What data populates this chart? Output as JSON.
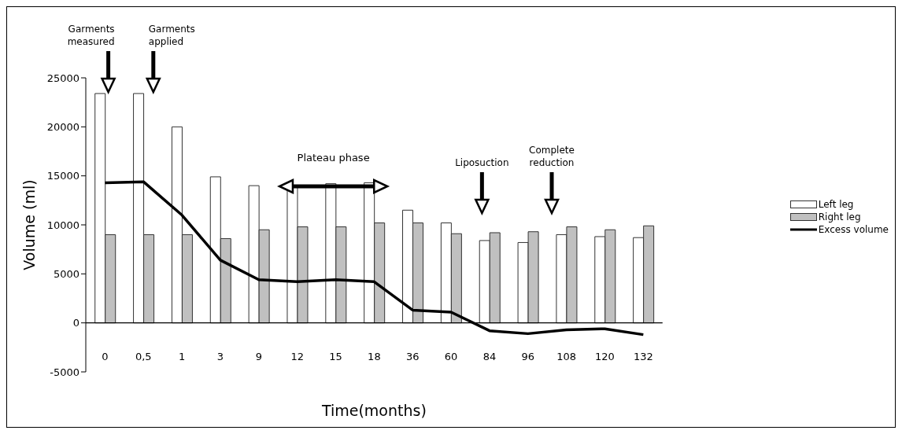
{
  "chart_data": {
    "type": "bar",
    "xlabel": "Time(months)",
    "ylabel": "Volume (ml)",
    "categories": [
      "0",
      "0,5",
      "1",
      "3",
      "9",
      "12",
      "15",
      "18",
      "36",
      "60",
      "84",
      "96",
      "108",
      "120",
      "132"
    ],
    "series": [
      {
        "name": "Left leg",
        "color": "#ffffff",
        "values": [
          23400,
          23400,
          20000,
          14900,
          14000,
          14000,
          14200,
          14300,
          11500,
          10200,
          8400,
          8200,
          9000,
          8800,
          8700
        ]
      },
      {
        "name": "Right leg",
        "color": "#c0c0c0",
        "values": [
          9000,
          9000,
          9000,
          8600,
          9500,
          9800,
          9800,
          10200,
          10200,
          9100,
          9200,
          9300,
          9800,
          9500,
          9900
        ]
      },
      {
        "name": "Excess volume",
        "type": "line",
        "color": "#000000",
        "values": [
          14300,
          14400,
          11000,
          6400,
          4400,
          4200,
          4400,
          4200,
          1300,
          1100,
          -800,
          -1100,
          -700,
          -600,
          -1200
        ]
      }
    ],
    "ylim": [
      -5000,
      25000
    ],
    "yticks": [
      -5000,
      0,
      5000,
      10000,
      15000,
      20000,
      25000
    ],
    "legend": "right",
    "marker": "none",
    "annotations": [
      "Garments measured",
      "Garments applied",
      "Plateau phase",
      "Liposuction",
      "Complete reduction"
    ]
  }
}
